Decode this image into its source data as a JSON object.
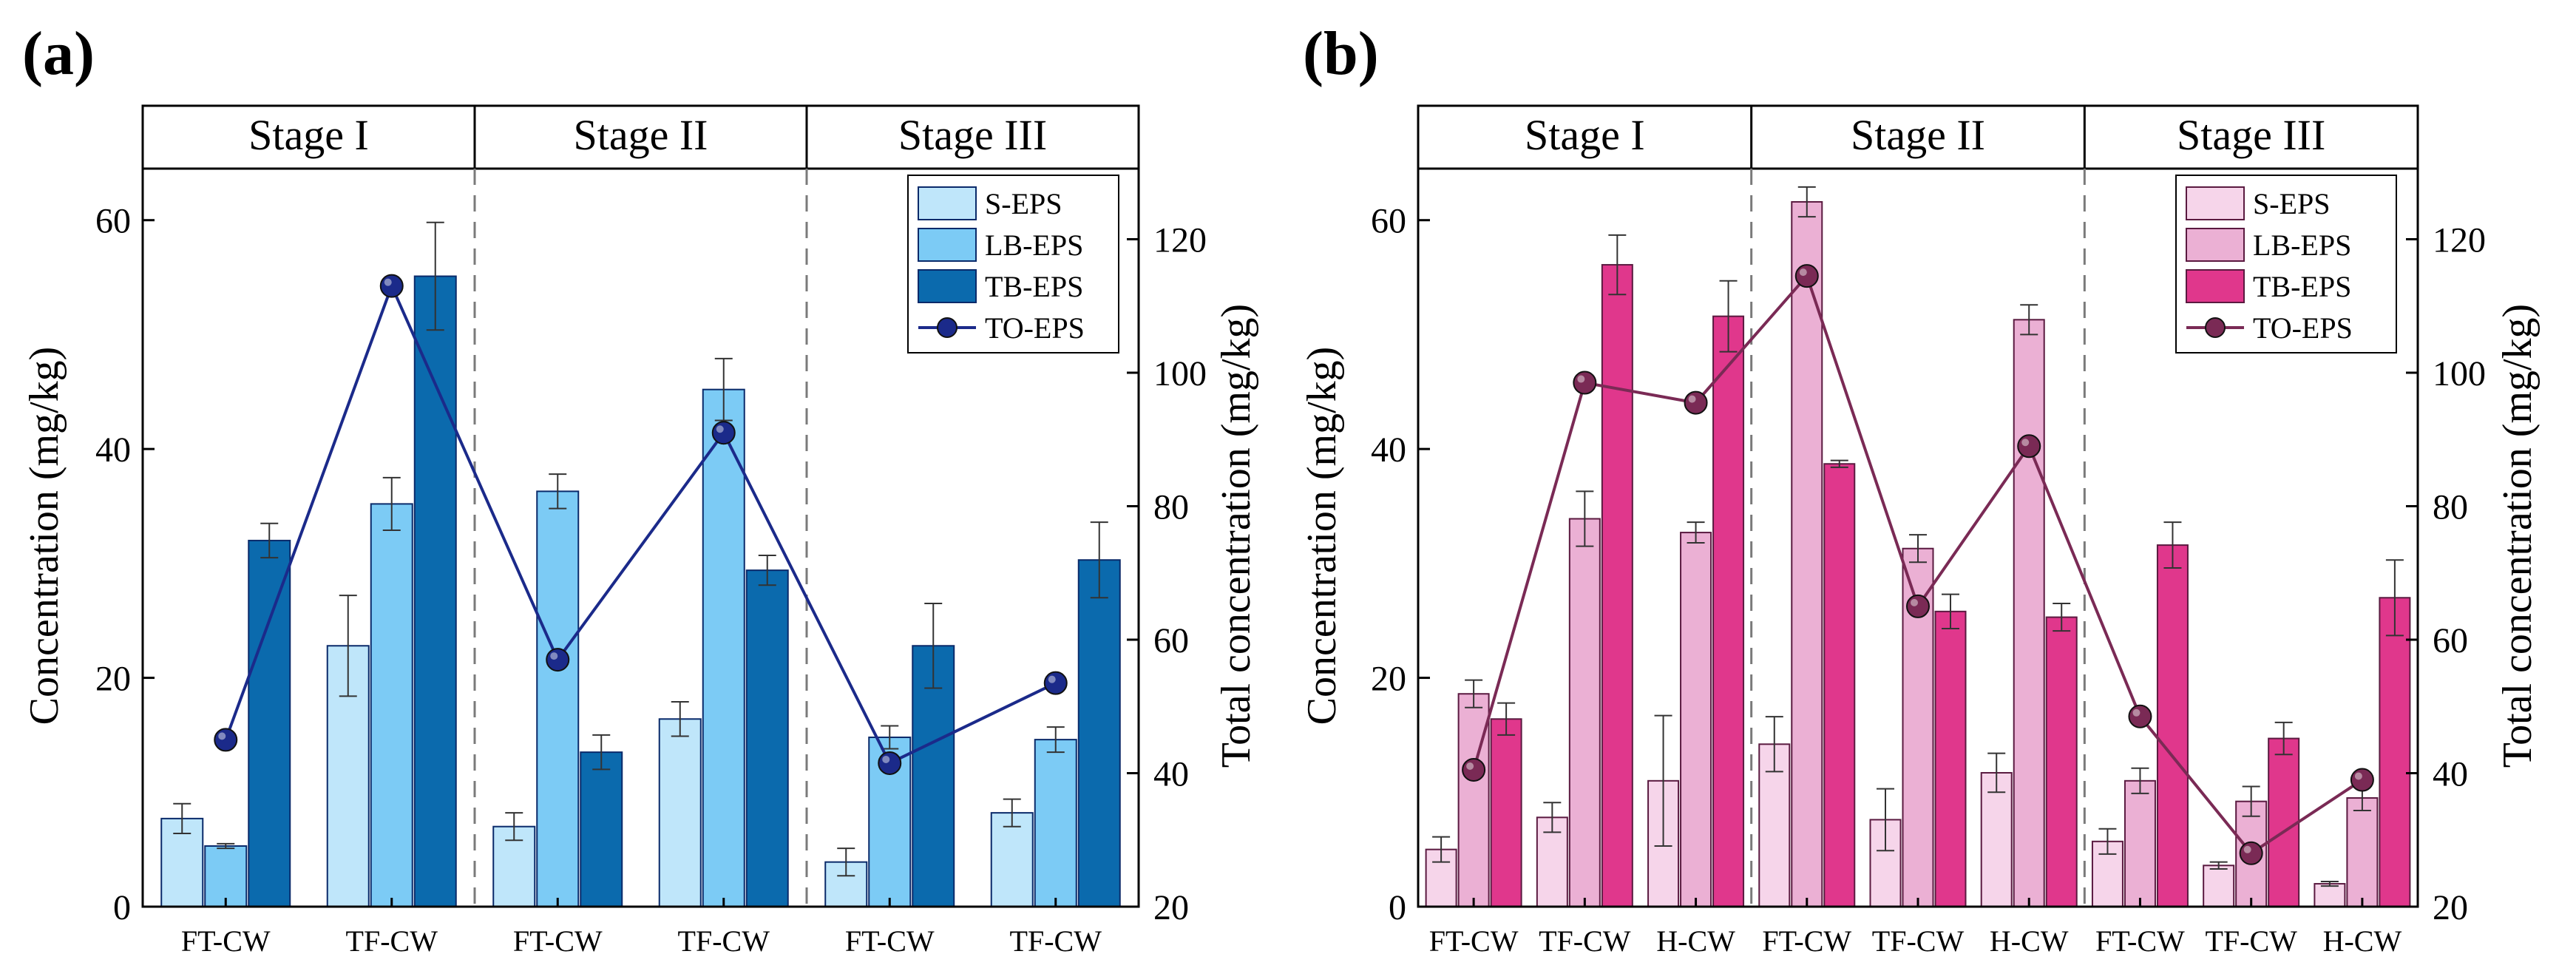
{
  "figure": {
    "panel_a_label": "(a)",
    "panel_b_label": "(b)"
  },
  "colors": {
    "a_s": "#bfe6fa",
    "a_lb": "#7ccbf5",
    "a_tb": "#0b6aad",
    "a_to": "#1b2a8a",
    "a_edge": "#0a2a6a",
    "b_s": "#f6d5ea",
    "b_lb": "#ebb0d4",
    "b_tb": "#e0378c",
    "b_to": "#7a2a55",
    "b_edge": "#5a1a40"
  },
  "chart_data": [
    {
      "type": "bar",
      "panel": "(a)",
      "stages": [
        "Stage I",
        "Stage II",
        "Stage III"
      ],
      "groups_per_stage": 2,
      "categories": [
        "FT-CW",
        "TF-CW",
        "FT-CW",
        "TF-CW",
        "FT-CW",
        "TF-CW"
      ],
      "ylabel": "Concentration (mg/kg)",
      "ylim": [
        0,
        70
      ],
      "yticks": [
        0,
        20,
        40,
        60
      ],
      "y2label": "Total concentration (mg/kg)",
      "y2lim": [
        20,
        140
      ],
      "y2ticks": [
        20,
        40,
        60,
        80,
        100,
        120
      ],
      "legend": [
        "S-EPS",
        "LB-EPS",
        "TB-EPS",
        "TO-EPS"
      ],
      "legend_position": "top-right",
      "series": [
        {
          "name": "S-EPS",
          "kind": "bar",
          "values": [
            7.7,
            22.8,
            7.0,
            16.4,
            3.9,
            8.2
          ],
          "errors": [
            1.3,
            4.4,
            1.2,
            1.5,
            1.2,
            1.2
          ]
        },
        {
          "name": "LB-EPS",
          "kind": "bar",
          "values": [
            5.3,
            35.2,
            36.3,
            45.2,
            14.8,
            14.6
          ],
          "errors": [
            0.2,
            2.3,
            1.5,
            2.7,
            1.0,
            1.1
          ]
        },
        {
          "name": "TB-EPS",
          "kind": "bar",
          "values": [
            32.0,
            55.1,
            13.5,
            29.4,
            22.8,
            30.3
          ],
          "errors": [
            1.5,
            4.7,
            1.5,
            1.3,
            3.7,
            3.3
          ]
        },
        {
          "name": "TO-EPS",
          "kind": "line",
          "axis": "right",
          "values": [
            45.0,
            113.0,
            57.0,
            91.0,
            41.5,
            53.5
          ]
        }
      ]
    },
    {
      "type": "bar",
      "panel": "(b)",
      "stages": [
        "Stage I",
        "Stage II",
        "Stage III"
      ],
      "groups_per_stage": 3,
      "categories": [
        "FT-CW",
        "TF-CW",
        "H-CW",
        "FT-CW",
        "TF-CW",
        "H-CW",
        "FT-CW",
        "TF-CW",
        "H-CW"
      ],
      "ylabel": "Concentration (mg/kg)",
      "ylim": [
        0,
        70
      ],
      "yticks": [
        0,
        20,
        40,
        60
      ],
      "y2label": "Total concentration (mg/kg)",
      "y2lim": [
        20,
        140
      ],
      "y2ticks": [
        20,
        40,
        60,
        80,
        100,
        120
      ],
      "legend": [
        "S-EPS",
        "LB-EPS",
        "TB-EPS",
        "TO-EPS"
      ],
      "legend_position": "top-right",
      "series": [
        {
          "name": "S-EPS",
          "kind": "bar",
          "values": [
            5.0,
            7.8,
            11.0,
            14.2,
            7.6,
            11.7,
            5.7,
            3.6,
            2.0
          ],
          "errors": [
            1.1,
            1.3,
            5.7,
            2.4,
            2.7,
            1.7,
            1.1,
            0.3,
            0.2
          ]
        },
        {
          "name": "LB-EPS",
          "kind": "bar",
          "values": [
            18.6,
            33.9,
            32.7,
            61.6,
            31.3,
            51.3,
            11.0,
            9.2,
            9.5
          ],
          "errors": [
            1.2,
            2.4,
            0.9,
            1.3,
            1.2,
            1.3,
            1.1,
            1.3,
            1.1
          ]
        },
        {
          "name": "TB-EPS",
          "kind": "bar",
          "values": [
            16.4,
            56.1,
            51.6,
            38.7,
            25.8,
            25.3,
            31.6,
            14.7,
            27.0
          ],
          "errors": [
            1.4,
            2.6,
            3.1,
            0.3,
            1.5,
            1.2,
            2.0,
            1.4,
            3.3
          ]
        },
        {
          "name": "TO-EPS",
          "kind": "line",
          "axis": "right",
          "values": [
            40.5,
            98.5,
            95.5,
            114.5,
            65.0,
            89.0,
            48.5,
            28.0,
            39.0
          ]
        }
      ]
    }
  ]
}
